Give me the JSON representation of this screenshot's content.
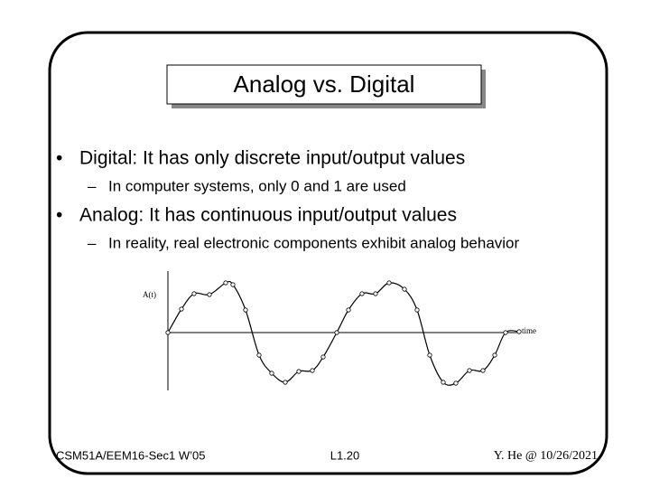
{
  "title": "Analog vs. Digital",
  "bullets": [
    {
      "text": "Digital: It has only discrete input/output values",
      "sub": [
        "In computer systems, only 0 and 1 are used"
      ]
    },
    {
      "text": "Analog: It has continuous input/output values",
      "sub": [
        "In reality, real electronic components exhibit analog behavior"
      ]
    }
  ],
  "figure": {
    "y_label": "A(t)",
    "x_label": "time"
  },
  "footer": {
    "course": "CSM51A/EEM16-Sec1 W’05",
    "page": "L1.20",
    "author": "Y. He @ 10/26/2021"
  }
}
